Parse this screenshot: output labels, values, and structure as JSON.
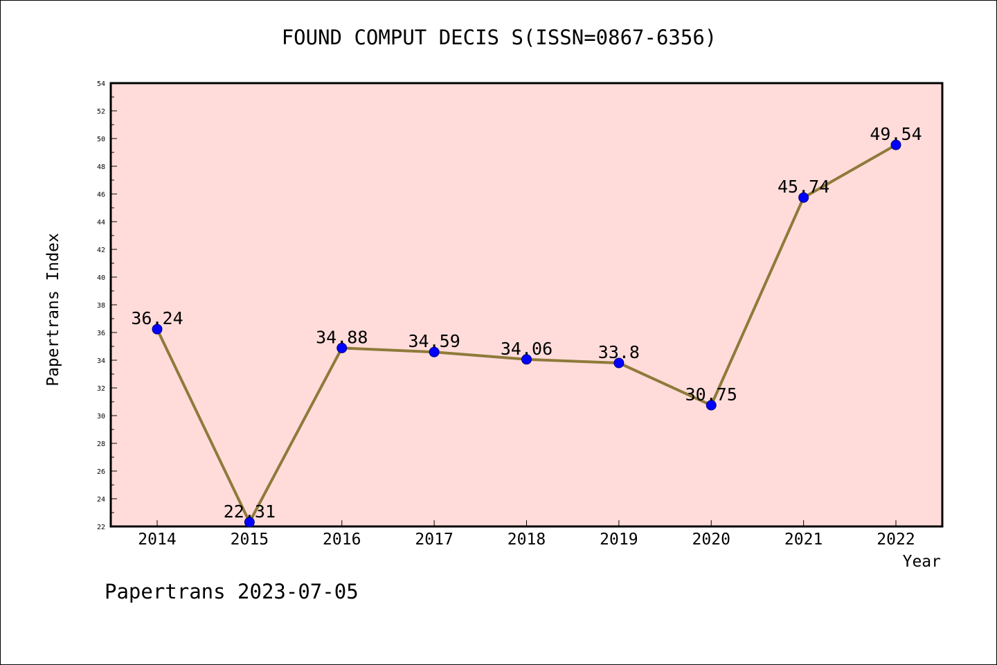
{
  "chart_data": {
    "type": "line",
    "title": "FOUND COMPUT DECIS S(ISSN=0867-6356)",
    "xlabel": "Year",
    "ylabel": "Papertrans Index",
    "categories": [
      "2014",
      "2015",
      "2016",
      "2017",
      "2018",
      "2019",
      "2020",
      "2021",
      "2022"
    ],
    "series": [
      {
        "values": [
          36.24,
          22.31,
          34.88,
          34.59,
          34.06,
          33.8,
          30.75,
          45.74,
          49.54
        ],
        "labels": [
          "36.24",
          "22.31",
          "34.88",
          "34.59",
          "34.06",
          "33.8",
          "30.75",
          "45.74",
          "49.54"
        ]
      }
    ],
    "ylim": [
      22,
      54
    ],
    "yticks": [
      "22",
      "24",
      "26",
      "28",
      "30",
      "32",
      "34",
      "36",
      "38",
      "40",
      "42",
      "44",
      "46",
      "48",
      "50",
      "52",
      "54"
    ],
    "grid": false,
    "colors": {
      "plot_background": "#FFDCDA",
      "line": "#8F7A3A",
      "marker": "#0000FF"
    }
  },
  "footer": "Papertrans 2023-07-05"
}
